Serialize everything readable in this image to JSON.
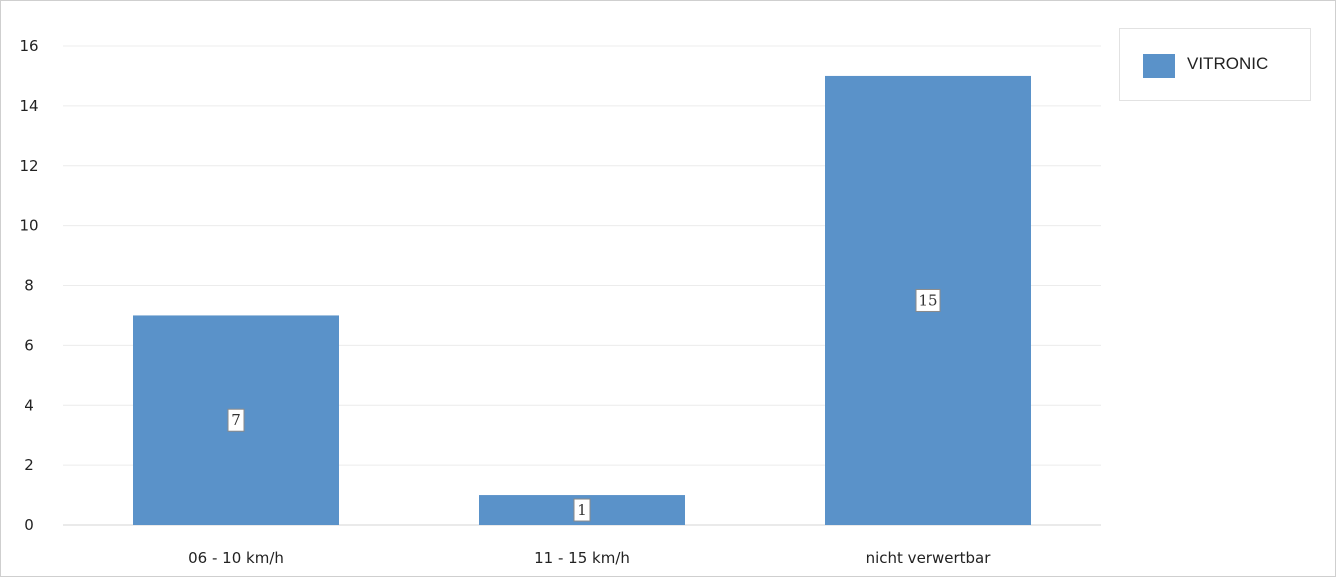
{
  "chart_data": {
    "type": "bar",
    "categories": [
      "06 - 10 km/h",
      "11 - 15 km/h",
      "nicht verwertbar"
    ],
    "series": [
      {
        "name": "VITRONIC",
        "values": [
          7,
          1,
          15
        ],
        "color": "#5a92c9"
      }
    ],
    "ylim": [
      0,
      16
    ],
    "yticks": [
      0,
      2,
      4,
      6,
      8,
      10,
      12,
      14,
      16
    ],
    "data_labels": [
      "7",
      "1",
      "15"
    ],
    "grid": true,
    "legend_position": "top-right",
    "title": "",
    "xlabel": "",
    "ylabel": ""
  },
  "legend": {
    "label": "VITRONIC",
    "color": "#5a92c9"
  }
}
